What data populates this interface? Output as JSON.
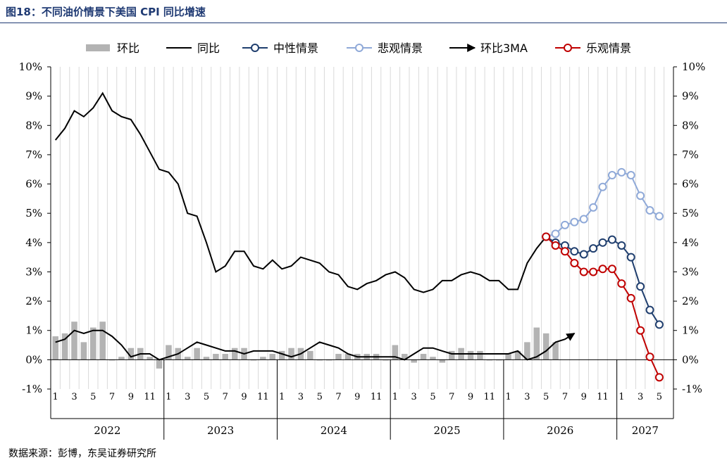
{
  "figure": {
    "title": "图18：不同油价情景下美国 CPI 同比增速",
    "source": "数据来源：彭博，东吴证券研究所"
  },
  "chart_data": {
    "type": "bar",
    "title": "",
    "xlabel": "",
    "ylabel": "",
    "ylim": [
      -1,
      10
    ],
    "grid": true,
    "legend": "top-center",
    "yticks": [
      "-1%",
      "0%",
      "1%",
      "2%",
      "3%",
      "4%",
      "5%",
      "6%",
      "7%",
      "8%",
      "9%",
      "10%"
    ],
    "month_ticks": [
      "1",
      "3",
      "5",
      "7",
      "9",
      "11",
      "1",
      "3",
      "5",
      "7",
      "9",
      "11",
      "1",
      "3",
      "5",
      "7",
      "9",
      "11",
      "1",
      "3",
      "5",
      "7",
      "9",
      "11",
      "1",
      "3",
      "5",
      "7",
      "9",
      "11",
      "1",
      "3",
      "5"
    ],
    "years": [
      "2022",
      "2023",
      "2024",
      "2025",
      "2026",
      "2027"
    ],
    "legend_items": [
      {
        "label": "环比",
        "color": "#b3b3b3"
      },
      {
        "label": "同比",
        "color": "#000000"
      },
      {
        "label": "中性情景",
        "color": "#1f3e6e"
      },
      {
        "label": "悲观情景",
        "color": "#8fa9d8"
      },
      {
        "label": "环比3MA",
        "color": "#000000"
      },
      {
        "label": "乐观情景",
        "color": "#c00000"
      }
    ],
    "x_start": "2022-01",
    "series": [
      {
        "name": "环比",
        "kind": "bar",
        "color": "#b3b3b3",
        "values": [
          0.8,
          0.9,
          1.3,
          0.6,
          1.1,
          1.3,
          0.0,
          0.1,
          0.4,
          0.4,
          0.1,
          -0.3,
          0.5,
          0.4,
          0.1,
          0.4,
          0.1,
          0.2,
          0.2,
          0.4,
          0.4,
          0.0,
          0.1,
          0.2,
          0.3,
          0.4,
          0.4,
          0.3,
          0.0,
          0.0,
          0.2,
          0.2,
          0.2,
          0.2,
          0.2,
          0.0,
          0.5,
          0.2,
          -0.1,
          0.2,
          0.1,
          -0.1,
          0.3,
          0.4,
          0.3,
          0.3,
          0.0,
          0.0,
          0.2,
          0.3,
          0.6,
          1.1,
          0.9,
          0.6
        ]
      },
      {
        "name": "同比",
        "kind": "line",
        "color": "#000000",
        "values": [
          7.5,
          7.9,
          8.5,
          8.3,
          8.6,
          9.1,
          8.5,
          8.3,
          8.2,
          7.7,
          7.1,
          6.5,
          6.4,
          6.0,
          5.0,
          4.9,
          4.0,
          3.0,
          3.2,
          3.7,
          3.7,
          3.2,
          3.1,
          3.4,
          3.1,
          3.2,
          3.5,
          3.4,
          3.3,
          3.0,
          2.9,
          2.5,
          2.4,
          2.6,
          2.7,
          2.9,
          3.0,
          2.8,
          2.4,
          2.3,
          2.4,
          2.7,
          2.7,
          2.9,
          3.0,
          2.9,
          2.7,
          2.7,
          2.4,
          2.4,
          3.3,
          3.8,
          4.2
        ]
      },
      {
        "name": "环比3MA",
        "kind": "line-arrow",
        "color": "#000000",
        "values": [
          0.6,
          0.7,
          1.0,
          0.9,
          1.0,
          1.0,
          0.8,
          0.5,
          0.1,
          0.2,
          0.2,
          0.0,
          0.1,
          0.2,
          0.4,
          0.6,
          0.5,
          0.4,
          0.3,
          0.3,
          0.2,
          0.3,
          0.3,
          0.3,
          0.2,
          0.1,
          0.2,
          0.4,
          0.6,
          0.5,
          0.4,
          0.2,
          0.1,
          0.1,
          0.1,
          0.1,
          0.1,
          0.0,
          0.2,
          0.4,
          0.4,
          0.3,
          0.2,
          0.2,
          0.2,
          0.2,
          0.2,
          0.2,
          0.2,
          0.3,
          0.0,
          0.1,
          0.3,
          0.6,
          0.7,
          0.9
        ]
      },
      {
        "name": "中性情景",
        "kind": "line-marker",
        "color": "#1f3e6e",
        "start_index": 52,
        "values": [
          4.2,
          4.0,
          3.9,
          3.7,
          3.6,
          3.8,
          4.0,
          4.1,
          3.9,
          3.5,
          2.5,
          1.7,
          1.2
        ]
      },
      {
        "name": "悲观情景",
        "kind": "line-marker",
        "color": "#8fa9d8",
        "start_index": 52,
        "values": [
          4.2,
          4.3,
          4.6,
          4.7,
          4.8,
          5.2,
          5.9,
          6.3,
          6.4,
          6.3,
          5.6,
          5.1,
          4.9
        ]
      },
      {
        "name": "乐观情景",
        "kind": "line-marker",
        "color": "#c00000",
        "start_index": 52,
        "values": [
          4.2,
          3.9,
          3.7,
          3.3,
          3.0,
          3.0,
          3.1,
          3.1,
          2.6,
          2.1,
          1.0,
          0.1,
          -0.6
        ]
      }
    ]
  }
}
